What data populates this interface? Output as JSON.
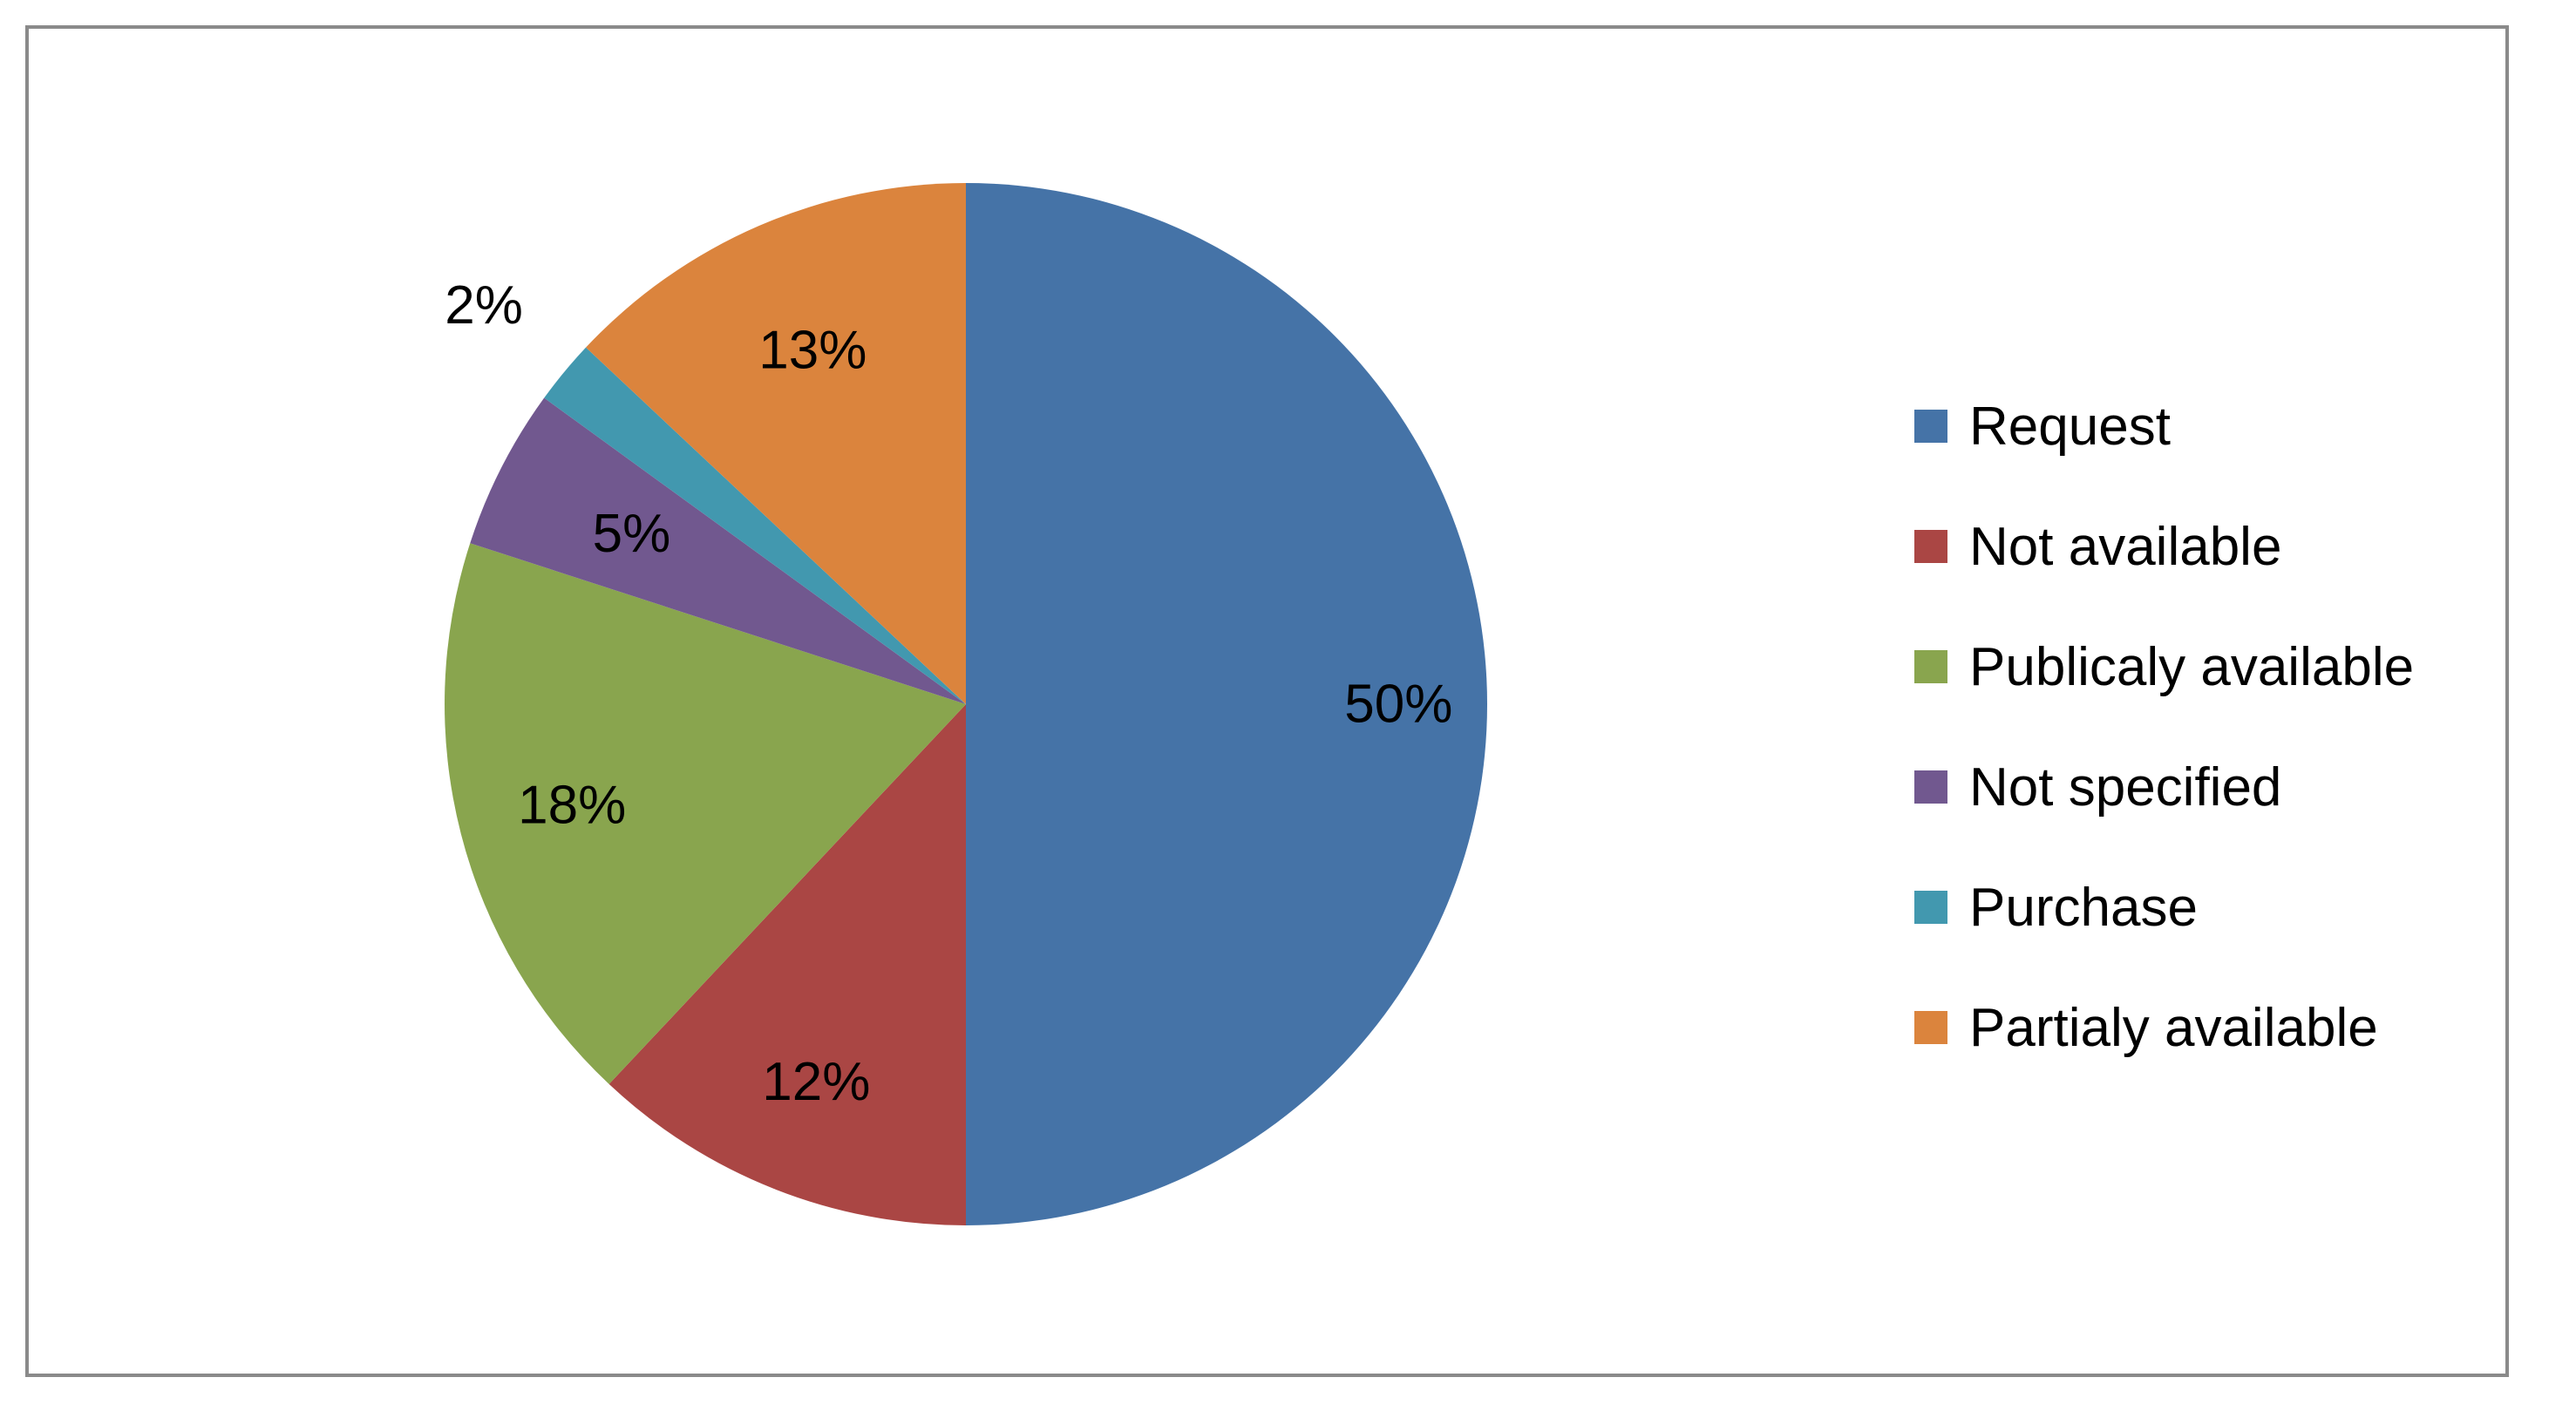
{
  "chart_data": {
    "type": "pie",
    "title": "",
    "legend_position": "right",
    "slices": [
      {
        "name": "Request",
        "value": 50,
        "label": "50%",
        "color": "#4573A7"
      },
      {
        "name": "Not available",
        "value": 12,
        "label": "12%",
        "color": "#AA4644"
      },
      {
        "name": "Publicaly available",
        "value": 18,
        "label": "18%",
        "color": "#89A54E"
      },
      {
        "name": "Not specified",
        "value": 5,
        "label": "5%",
        "color": "#71588F"
      },
      {
        "name": "Purchase",
        "value": 2,
        "label": "2%",
        "color": "#4298AF"
      },
      {
        "name": "Partialy available",
        "value": 13,
        "label": "13%",
        "color": "#DB843D"
      }
    ]
  }
}
